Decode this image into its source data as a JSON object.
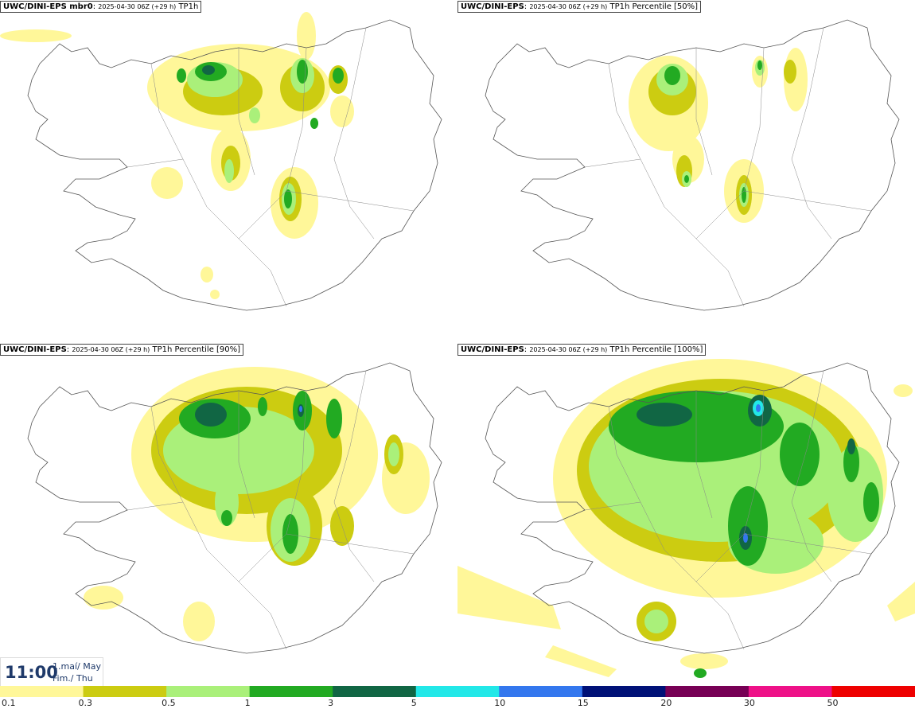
{
  "panels": [
    {
      "model": "UWC/DINI-EPS mbr0",
      "run": "2025-04-30 06Z (+29 h)",
      "field": "TP1h"
    },
    {
      "model": "UWC/DINI-EPS",
      "run": "2025-04-30 06Z (+29 h)",
      "field": "TP1h Percentile [50%]"
    },
    {
      "model": "UWC/DINI-EPS",
      "run": "2025-04-30 06Z (+29 h)",
      "field": "TP1h Percentile [90%]"
    },
    {
      "model": "UWC/DINI-EPS",
      "run": "2025-04-30 06Z (+29 h)",
      "field": "TP1h Percentile [100%]"
    }
  ],
  "valid_time": {
    "time": "11:00",
    "date_line1": "1.maí/ May",
    "date_line2": "Fim./ Thu"
  },
  "legend": {
    "labels": [
      "0.1",
      "0.3",
      "0.5",
      "1",
      "3",
      "5",
      "10",
      "15",
      "20",
      "30",
      "50"
    ],
    "colors": [
      "#fff799",
      "#cccc11",
      "#aaf07a",
      "#22aa22",
      "#116644",
      "#22e8e8",
      "#3377ee",
      "#001177",
      "#770055",
      "#ee1188",
      "#ee0000"
    ]
  },
  "colors": {
    "water": "#ffffff",
    "coast": "#555555",
    "text_dark": "#1f3a6a"
  }
}
